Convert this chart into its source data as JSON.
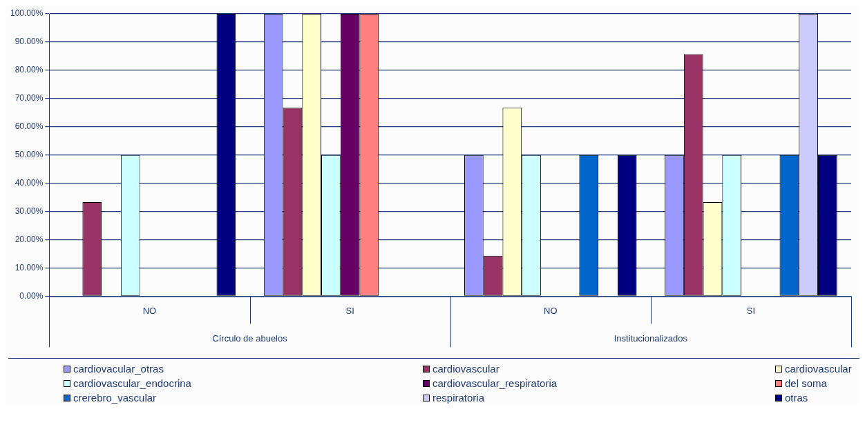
{
  "chart_data": {
    "type": "bar",
    "categories": [
      "NO",
      "SI",
      "NO",
      "SI"
    ],
    "annotations": [
      "Círculo de abuelos",
      "Institucionalizados"
    ],
    "ylim": [
      0,
      100
    ],
    "yticks": [
      {
        "value": 0,
        "label": "0.00%"
      },
      {
        "value": 10,
        "label": "10.00%"
      },
      {
        "value": 20,
        "label": "20.00%"
      },
      {
        "value": 30,
        "label": "30.00%"
      },
      {
        "value": 40,
        "label": "40.00%"
      },
      {
        "value": 50,
        "label": "50.00%"
      },
      {
        "value": 60,
        "label": "60.00%"
      },
      {
        "value": 70,
        "label": "70.00%"
      },
      {
        "value": 80,
        "label": "80.00%"
      },
      {
        "value": 90,
        "label": "90.00%"
      },
      {
        "value": 100,
        "label": "100.00%"
      }
    ],
    "grid": "y",
    "legend": "bottom",
    "series": [
      {
        "name": "cardiovacular_otras",
        "color": "#9999ff",
        "values": [
          null,
          100,
          50,
          50
        ]
      },
      {
        "name": "cardiovascular",
        "color": "#993366",
        "values": [
          33.3,
          66.7,
          14.3,
          85.7
        ]
      },
      {
        "name": "cardiovascular",
        "color": "#ffffcc",
        "values": [
          null,
          100,
          66.7,
          33.3
        ]
      },
      {
        "name": "cardiovascular_endocrina",
        "color": "#ccffff",
        "values": [
          50,
          50,
          50,
          50
        ]
      },
      {
        "name": "cardiovascular_respiratoria",
        "color": "#660066",
        "values": [
          null,
          100,
          null,
          null
        ]
      },
      {
        "name": "del soma",
        "color": "#ff8080",
        "values": [
          null,
          100,
          null,
          null
        ]
      },
      {
        "name": "crerebro_vascular",
        "color": "#0066cc",
        "values": [
          null,
          null,
          50,
          50
        ]
      },
      {
        "name": "respiratoria",
        "color": "#ccccff",
        "values": [
          null,
          null,
          null,
          100
        ]
      },
      {
        "name": "otras",
        "color": "#000080",
        "values": [
          100,
          null,
          50,
          50
        ]
      }
    ]
  }
}
